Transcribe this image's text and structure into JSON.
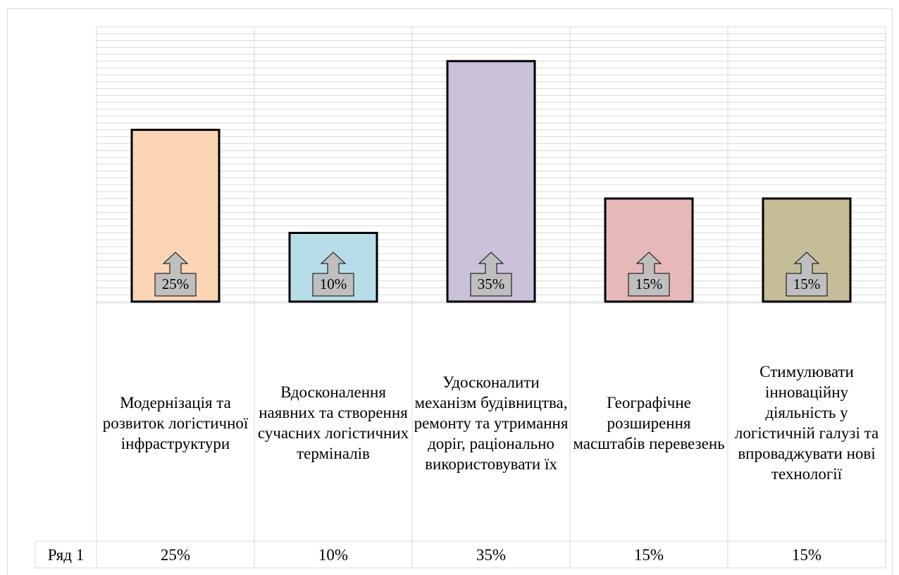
{
  "chart_data": {
    "type": "bar",
    "categories": [
      "Модернізація та розвиток логістичної інфраструктури",
      "Вдосконалення наявних та створення сучасних логістичних терміналів",
      "Удосконалити механізм будівництва, ремонту та утримання доріг, раціонально використовувати їх",
      "Географічне розширення масштабів перевезень",
      "Стимулювати інноваційну діяльність у логістичній галузі та впроваджувати нові технології"
    ],
    "series": [
      {
        "name": "Ряд 1",
        "values": [
          25,
          10,
          35,
          15,
          15
        ],
        "value_labels": [
          "25%",
          "10%",
          "35%",
          "15%",
          "15%"
        ],
        "colors": [
          "#fcd5b5",
          "#b7dee8",
          "#ccc1da",
          "#e6b9b8",
          "#c4bd97"
        ]
      }
    ],
    "ylim": [
      0,
      40
    ],
    "yticks": [
      0,
      1,
      2,
      3,
      4,
      5,
      6,
      7,
      8,
      9,
      10,
      11,
      12,
      13,
      14,
      15,
      16,
      17,
      18,
      19,
      20,
      21,
      22,
      23,
      24,
      25,
      26,
      27,
      28,
      29,
      30,
      31,
      32,
      33,
      34,
      35,
      36,
      37,
      38,
      39,
      40
    ],
    "grid": true,
    "data_table": true
  }
}
